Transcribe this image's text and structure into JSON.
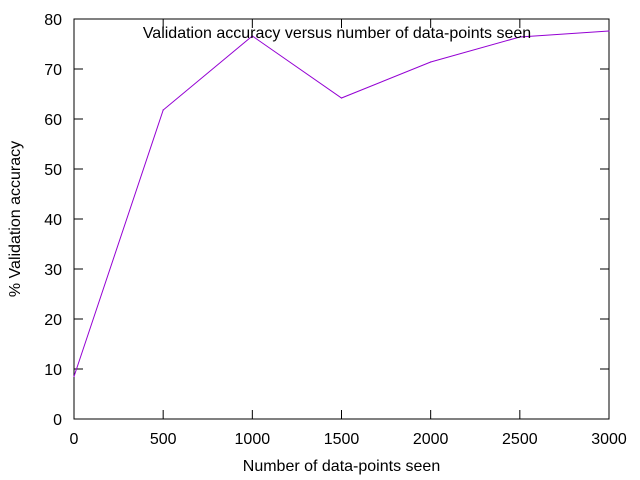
{
  "chart_data": {
    "type": "line",
    "title": "Validation accuracy versus number of data-points seen",
    "xlabel": "Number of data-points seen",
    "ylabel": "% Validation accuracy",
    "xlim": [
      0,
      3000
    ],
    "ylim": [
      0,
      80
    ],
    "x_ticks": [
      0,
      500,
      1000,
      1500,
      2000,
      2500,
      3000
    ],
    "y_ticks": [
      0,
      10,
      20,
      30,
      40,
      50,
      60,
      70,
      80
    ],
    "grid": false,
    "legend": "none",
    "series": [
      {
        "color": "#9400d3",
        "x": [
          0,
          500,
          1000,
          1500,
          2000,
          2500,
          3000
        ],
        "y": [
          8.5,
          61.8,
          76.6,
          64.2,
          71.4,
          76.4,
          77.6
        ]
      }
    ]
  }
}
